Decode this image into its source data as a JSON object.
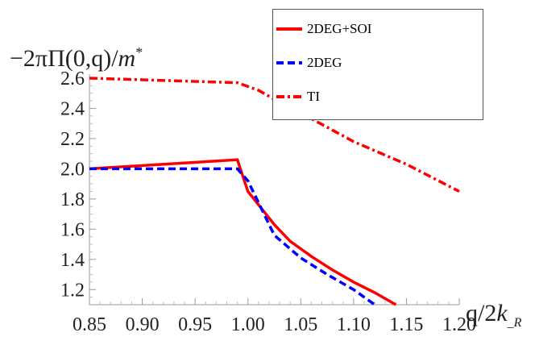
{
  "chart_data": {
    "type": "line",
    "ylabel": "−2πΠ(0,q)/m*",
    "xlabel": "q/2k_R",
    "xlim": [
      0.85,
      1.2
    ],
    "ylim": [
      1.1,
      2.6
    ],
    "xticks": [
      "0.85",
      "0.90",
      "0.95",
      "1.00",
      "1.05",
      "1.10",
      "1.15",
      "1.20"
    ],
    "yticks": [
      "1.2",
      "1.4",
      "1.6",
      "1.8",
      "2.0",
      "2.2",
      "2.4",
      "2.6"
    ],
    "legend_position": "top-right",
    "grid": false,
    "series": [
      {
        "name": "2DEG+SOI",
        "color": "#ff0000",
        "style": "solid",
        "x": [
          0.85,
          0.99,
          1.0,
          1.025,
          1.04,
          1.06,
          1.08,
          1.1,
          1.12,
          1.14
        ],
        "y": [
          2.0,
          2.06,
          1.85,
          1.63,
          1.52,
          1.42,
          1.33,
          1.25,
          1.18,
          1.1
        ]
      },
      {
        "name": "2DEG",
        "color": "#0000ff",
        "style": "dashed",
        "x": [
          0.85,
          0.99,
          1.0,
          1.025,
          1.05,
          1.075,
          1.1,
          1.12
        ],
        "y": [
          2.0,
          2.0,
          1.92,
          1.56,
          1.41,
          1.3,
          1.2,
          1.1
        ]
      },
      {
        "name": "TI",
        "color": "#ff0000",
        "style": "dashdot",
        "x": [
          0.85,
          0.99,
          1.01,
          1.03,
          1.05,
          1.1,
          1.15,
          1.2
        ],
        "y": [
          2.6,
          2.57,
          2.52,
          2.44,
          2.37,
          2.18,
          2.03,
          1.85
        ]
      }
    ]
  }
}
